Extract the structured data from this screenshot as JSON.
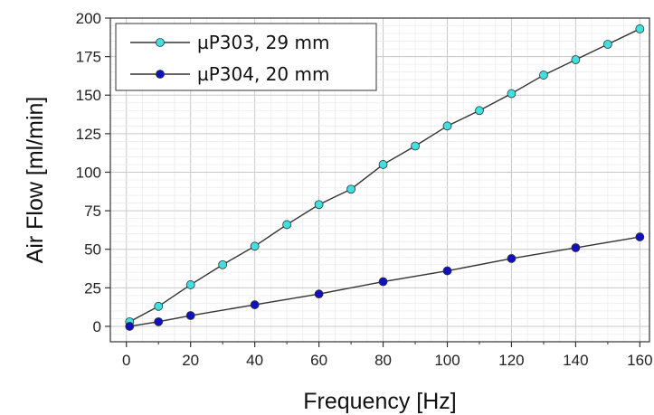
{
  "chart_data": {
    "type": "line",
    "xlabel": "Frequency [Hz]",
    "ylabel": "Air Flow [ml/min]",
    "xlim": [
      -5,
      163
    ],
    "ylim": [
      -10,
      200
    ],
    "xticks": [
      0,
      20,
      40,
      60,
      80,
      100,
      120,
      140,
      160
    ],
    "yticks": [
      0,
      25,
      50,
      75,
      100,
      125,
      150,
      175,
      200
    ],
    "grid": true,
    "legend_position": "top-left",
    "series": [
      {
        "name": "µP303, 29 mm",
        "color": "#40e0e0",
        "x": [
          1,
          10,
          20,
          30,
          40,
          50,
          60,
          70,
          80,
          90,
          100,
          110,
          120,
          130,
          140,
          150,
          160
        ],
        "y": [
          3,
          13,
          27,
          40,
          52,
          66,
          79,
          89,
          105,
          117,
          130,
          140,
          151,
          163,
          173,
          183,
          193
        ]
      },
      {
        "name": "µP304, 20 mm",
        "color": "#1010c0",
        "x": [
          1,
          10,
          20,
          40,
          60,
          80,
          100,
          120,
          140,
          160
        ],
        "y": [
          0,
          3,
          7,
          14,
          21,
          29,
          36,
          44,
          51,
          58
        ]
      }
    ]
  }
}
